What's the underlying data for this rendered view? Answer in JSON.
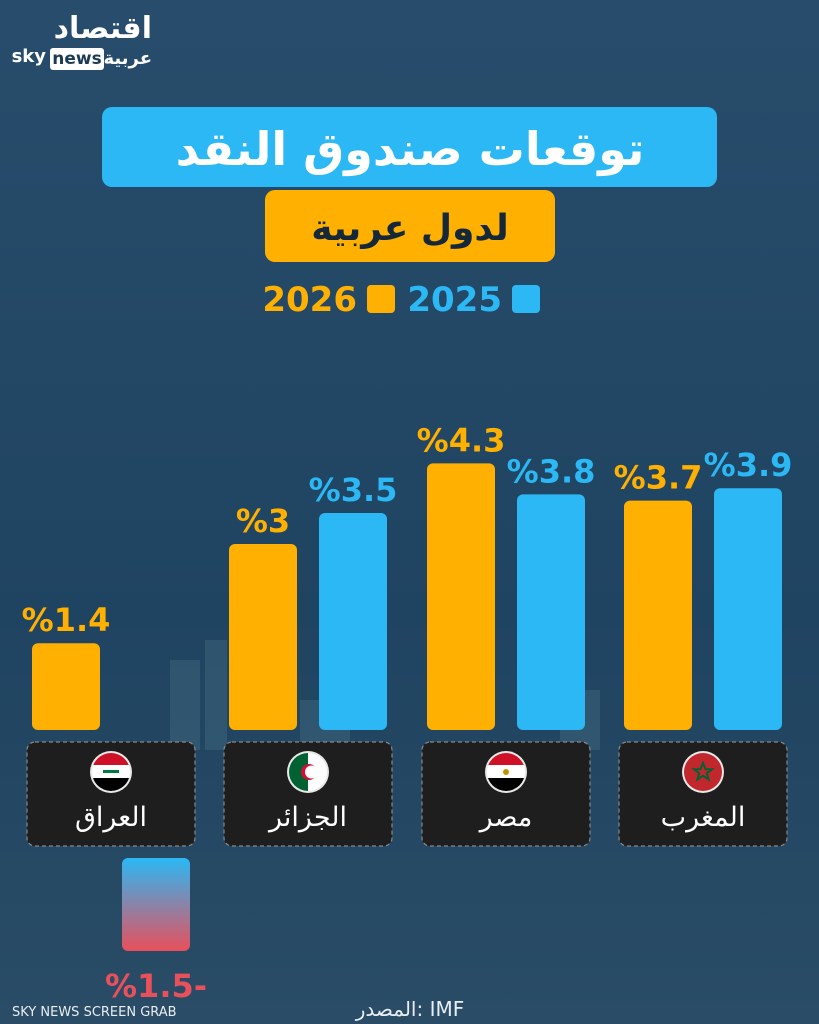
{
  "branding": {
    "arabic": "اقتصاد",
    "sky": "sky",
    "news": "news",
    "arabic_sub": "عربية"
  },
  "footer": "SKY NEWS SCREEN GRAB",
  "source": "المصدر: IMF",
  "chart_data": {
    "type": "bar",
    "title": "توقعات صندوق النقد",
    "subtitle": "لدول عربية",
    "categories": [
      "المغرب",
      "مصر",
      "الجزائر",
      "العراق"
    ],
    "series": [
      {
        "name": "2025",
        "color": "#2bb8f5",
        "values": [
          3.9,
          3.8,
          3.5,
          -1.5
        ],
        "value_labels": [
          "%3.9",
          "%3.8",
          "%3.5",
          "%1.5-"
        ]
      },
      {
        "name": "2026",
        "color": "#ffb000",
        "values": [
          3.7,
          4.3,
          3,
          1.4
        ],
        "value_labels": [
          "%3.7",
          "%4.3",
          "%3",
          "%1.4"
        ]
      }
    ],
    "negative_color": "#e8505b"
  }
}
